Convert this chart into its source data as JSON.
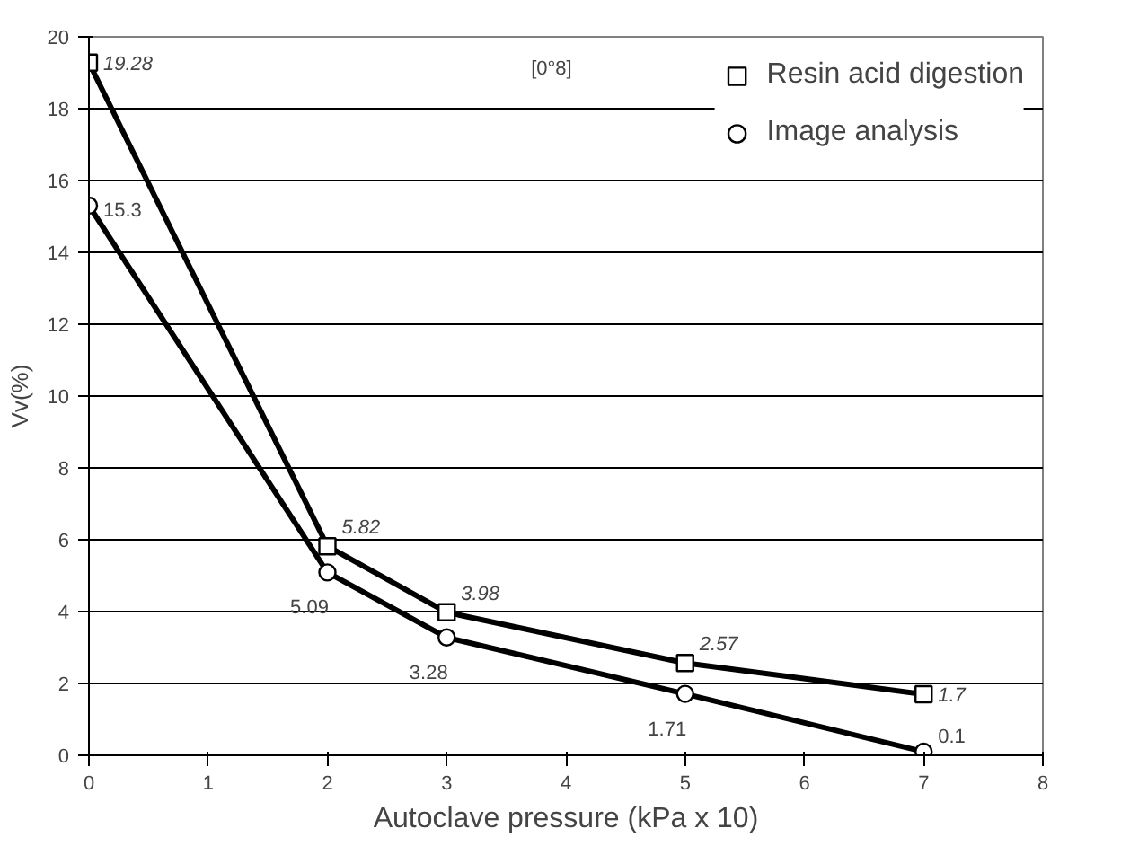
{
  "chart_data": {
    "type": "line",
    "xlabel": "Autoclave pressure (kPa x 10)",
    "ylabel": "Vv(%)",
    "annotations": [
      "[0°8]"
    ],
    "xlim": [
      0,
      8
    ],
    "xticks": [
      0,
      1,
      2,
      3,
      4,
      5,
      6,
      7,
      8
    ],
    "ylim": [
      0,
      20
    ],
    "yticks": [
      0,
      2,
      4,
      6,
      8,
      10,
      12,
      14,
      16,
      18,
      20
    ],
    "grid": "y",
    "legend": "top right",
    "data_labels": true,
    "line_style": "solid",
    "series": [
      {
        "name": "Resin acid digestion",
        "color": "#000000",
        "marker": "square",
        "x": [
          0,
          2,
          3,
          5,
          7
        ],
        "values": [
          19.28,
          5.82,
          3.98,
          2.57,
          1.7
        ]
      },
      {
        "name": "Image analysis",
        "color": "#000000",
        "marker": "circle",
        "x": [
          0,
          2,
          3,
          5,
          7
        ],
        "values": [
          15.3,
          5.09,
          3.28,
          1.71,
          0.1
        ]
      }
    ]
  }
}
